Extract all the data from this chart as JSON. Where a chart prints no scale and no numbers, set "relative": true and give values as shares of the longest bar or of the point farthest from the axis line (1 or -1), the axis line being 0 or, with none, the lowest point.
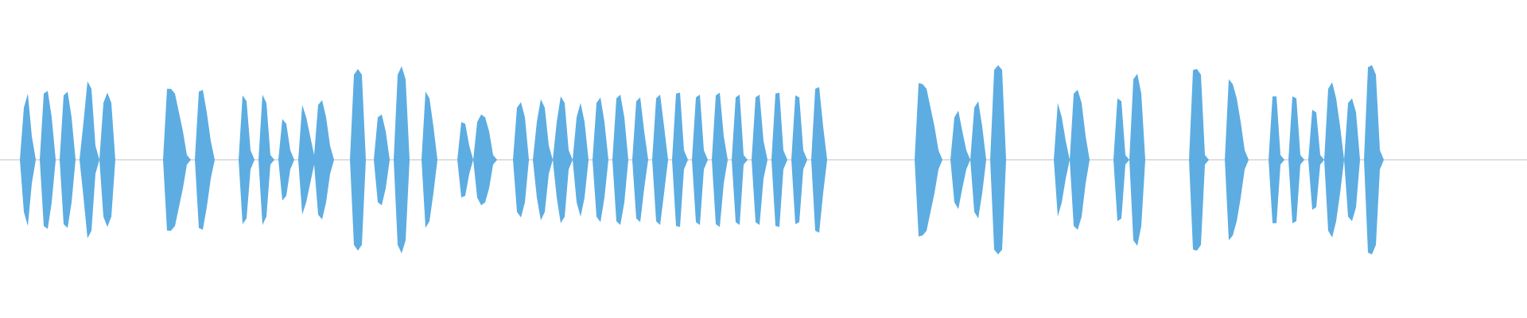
{
  "chart_data": {
    "type": "area",
    "relative": true,
    "categories": [
      null,
      null,
      null,
      null,
      null,
      null,
      null,
      null,
      null,
      null,
      null,
      null,
      null,
      null,
      null,
      null,
      null,
      null,
      null,
      null,
      null,
      null,
      null,
      null,
      null,
      null,
      null,
      null,
      null,
      null,
      null,
      null,
      null,
      null,
      null,
      null,
      null,
      null,
      null,
      null,
      null,
      null,
      null,
      null,
      null,
      null,
      null,
      null,
      null,
      null,
      null,
      null,
      null,
      null,
      null,
      null,
      null,
      null,
      null,
      null,
      null,
      null,
      null,
      null,
      null,
      null,
      null,
      null,
      null,
      null,
      null,
      null,
      null,
      null,
      null,
      null,
      null,
      null,
      null,
      null,
      null,
      null,
      null,
      null,
      null,
      null,
      null,
      null,
      null,
      null,
      null,
      null,
      null,
      null,
      null,
      null,
      null,
      null,
      null,
      null,
      null,
      null,
      null,
      null,
      null,
      null,
      null,
      null,
      null,
      null,
      null,
      null,
      null,
      null,
      null,
      null,
      null,
      null,
      null,
      null,
      null,
      null,
      null,
      null,
      null,
      null,
      null,
      null,
      null,
      null,
      null,
      null,
      null,
      null,
      null,
      null,
      null,
      null,
      null,
      null,
      null,
      null,
      null,
      null,
      null,
      null,
      null,
      null,
      null,
      null,
      null,
      null,
      null,
      null,
      null,
      null,
      null,
      null,
      null,
      null,
      null,
      null,
      null,
      null,
      null,
      null,
      null,
      null,
      null,
      null,
      null,
      null,
      null,
      null,
      null,
      null,
      null,
      null,
      null,
      null,
      null,
      null,
      null,
      null,
      null,
      null,
      null,
      null,
      null,
      null,
      null,
      null,
      null,
      null,
      null,
      null,
      null,
      null,
      null,
      null,
      null,
      null,
      null,
      null,
      null,
      null,
      null,
      null,
      null,
      null,
      null,
      null,
      null,
      null,
      null,
      null,
      null,
      null,
      null,
      null,
      null,
      null,
      null,
      null,
      null,
      null,
      null,
      null,
      null,
      null,
      null,
      null,
      null,
      null,
      null,
      null,
      null,
      null,
      null,
      null,
      null,
      null,
      null,
      null,
      null,
      null,
      null,
      null,
      null,
      null,
      null,
      null,
      null,
      null,
      null,
      null,
      null,
      null,
      null,
      null,
      null,
      null,
      null,
      null,
      null,
      null,
      null,
      null,
      null,
      null,
      null,
      null,
      null,
      null,
      null,
      null,
      null,
      null,
      null,
      null,
      null,
      null,
      null,
      null,
      null,
      null,
      null,
      null,
      null,
      null,
      null,
      null,
      null,
      null,
      null,
      null,
      null,
      null,
      null,
      null,
      null,
      null,
      null,
      null,
      null,
      null,
      null,
      null,
      null,
      null,
      null,
      null,
      null,
      null,
      null,
      null,
      null,
      null,
      null,
      null,
      null,
      null,
      null,
      null,
      null,
      null,
      null,
      null,
      null,
      null,
      null,
      null,
      null,
      null,
      null,
      null,
      null,
      null,
      null,
      null,
      null,
      null,
      null,
      null,
      null
    ],
    "series": [
      {
        "color": "#5dade2",
        "values": [
          0,
          0.55,
          0.7,
          0.25,
          0,
          0,
          0.7,
          0.73,
          0.45,
          0,
          0,
          0.68,
          0.72,
          0.45,
          0,
          0,
          0.4,
          0.83,
          0.75,
          0.15,
          0,
          0.6,
          0.71,
          0.6,
          0,
          0,
          0,
          0,
          0,
          0,
          0,
          0,
          0,
          0,
          0,
          0,
          0,
          0.75,
          0.75,
          0.7,
          0.5,
          0.3,
          0.05,
          0,
          0,
          0.72,
          0.74,
          0.5,
          0.2,
          0,
          0,
          0,
          0,
          0,
          0,
          0,
          0.68,
          0.62,
          0.1,
          0,
          0,
          0.69,
          0.6,
          0.05,
          0,
          0,
          0.43,
          0.38,
          0.1,
          0,
          0,
          0.58,
          0.45,
          0.25,
          0.05,
          0.58,
          0.63,
          0.45,
          0.15,
          0,
          0,
          0,
          0,
          0,
          0.9,
          0.96,
          0.9,
          0,
          0,
          0,
          0.45,
          0.48,
          0.3,
          0,
          0,
          0.9,
          0.99,
          0.85,
          0,
          0,
          0,
          0,
          0.72,
          0.65,
          0.35,
          0,
          0,
          0,
          0,
          0,
          0,
          0.4,
          0.38,
          0.15,
          0,
          0.4,
          0.48,
          0.45,
          0.3,
          0.05,
          0,
          0,
          0,
          0,
          0,
          0.55,
          0.61,
          0.45,
          0,
          0,
          0.4,
          0.64,
          0.55,
          0.15,
          0,
          0.4,
          0.67,
          0.6,
          0.1,
          0,
          0.45,
          0.6,
          0.4,
          0,
          0,
          0.6,
          0.66,
          0.4,
          0,
          0,
          0.65,
          0.69,
          0.45,
          0,
          0,
          0.62,
          0.66,
          0.3,
          0,
          0,
          0.65,
          0.69,
          0.35,
          0,
          0,
          0.7,
          0.71,
          0.1,
          0,
          0,
          0.66,
          0.69,
          0.1,
          0,
          0,
          0.68,
          0.71,
          0.25,
          0,
          0,
          0.66,
          0.69,
          0.05,
          0,
          0,
          0.66,
          0.69,
          0.2,
          0,
          0,
          0.7,
          0.71,
          0.1,
          0,
          0,
          0.68,
          0.66,
          0.1,
          0,
          0,
          0.75,
          0.77,
          0.35,
          0,
          0,
          0,
          0,
          0,
          0,
          0,
          0,
          0,
          0,
          0,
          0,
          0,
          0,
          0,
          0,
          0,
          0,
          0,
          0,
          0,
          0,
          0,
          0.81,
          0.8,
          0.75,
          0.55,
          0.35,
          0.1,
          0,
          0,
          0,
          0.45,
          0.52,
          0.3,
          0.1,
          0,
          0.55,
          0.62,
          0.35,
          0,
          0,
          0.95,
          1.0,
          0.95,
          0,
          0,
          0,
          0,
          0,
          0,
          0,
          0,
          0,
          0,
          0,
          0,
          0,
          0.6,
          0.45,
          0.2,
          0,
          0.7,
          0.74,
          0.6,
          0.25,
          0,
          0,
          0,
          0,
          0,
          0,
          0,
          0.65,
          0.62,
          0.05,
          0,
          0.85,
          0.91,
          0.7,
          0,
          0,
          0,
          0,
          0,
          0,
          0,
          0,
          0,
          0,
          0,
          0,
          0.95,
          0.96,
          0.9,
          0.05,
          0,
          0,
          0,
          0,
          0,
          0.85,
          0.8,
          0.65,
          0.4,
          0.1,
          0,
          0,
          0,
          0,
          0,
          0,
          0.67,
          0.67,
          0.05,
          0,
          0,
          0.67,
          0.65,
          0.05,
          0,
          0,
          0.53,
          0.5,
          0.05,
          0,
          0.75,
          0.82,
          0.65,
          0.35,
          0,
          0.6,
          0.65,
          0.5,
          0,
          0,
          0.98,
          1.0,
          0.9,
          0.1,
          0,
          0
        ]
      },
      {
        "color": "#5dade2",
        "values": [
          0,
          -0.55,
          -0.7,
          -0.25,
          0,
          0,
          -0.7,
          -0.73,
          -0.45,
          0,
          0,
          -0.68,
          -0.72,
          -0.45,
          0,
          0,
          -0.4,
          -0.83,
          -0.75,
          -0.15,
          0,
          -0.6,
          -0.71,
          -0.6,
          0,
          0,
          0,
          0,
          0,
          0,
          0,
          0,
          0,
          0,
          0,
          0,
          0,
          -0.75,
          -0.75,
          -0.7,
          -0.5,
          -0.3,
          -0.05,
          0,
          0,
          -0.72,
          -0.74,
          -0.5,
          -0.2,
          0,
          0,
          0,
          0,
          0,
          0,
          0,
          -0.68,
          -0.62,
          -0.1,
          0,
          0,
          -0.69,
          -0.6,
          -0.05,
          0,
          0,
          -0.43,
          -0.38,
          -0.1,
          0,
          0,
          -0.58,
          -0.45,
          -0.25,
          -0.05,
          -0.58,
          -0.63,
          -0.45,
          -0.15,
          0,
          0,
          0,
          0,
          0,
          -0.9,
          -0.96,
          -0.9,
          0,
          0,
          0,
          -0.45,
          -0.48,
          -0.3,
          0,
          0,
          -0.9,
          -0.99,
          -0.85,
          0,
          0,
          0,
          0,
          -0.72,
          -0.65,
          -0.35,
          0,
          0,
          0,
          0,
          0,
          0,
          -0.4,
          -0.38,
          -0.15,
          0,
          -0.4,
          -0.48,
          -0.45,
          -0.3,
          -0.05,
          0,
          0,
          0,
          0,
          0,
          -0.55,
          -0.61,
          -0.45,
          0,
          0,
          -0.4,
          -0.64,
          -0.55,
          -0.15,
          0,
          -0.4,
          -0.67,
          -0.6,
          -0.1,
          0,
          -0.45,
          -0.6,
          -0.4,
          0,
          0,
          -0.6,
          -0.66,
          -0.4,
          0,
          0,
          -0.65,
          -0.69,
          -0.45,
          0,
          0,
          -0.62,
          -0.66,
          -0.3,
          0,
          0,
          -0.65,
          -0.69,
          -0.35,
          0,
          0,
          -0.7,
          -0.71,
          -0.1,
          0,
          0,
          -0.66,
          -0.69,
          -0.1,
          0,
          0,
          -0.68,
          -0.71,
          -0.25,
          0,
          0,
          -0.66,
          -0.69,
          -0.05,
          0,
          0,
          -0.66,
          -0.69,
          -0.2,
          0,
          0,
          -0.7,
          -0.71,
          -0.1,
          0,
          0,
          -0.68,
          -0.66,
          -0.1,
          0,
          0,
          -0.75,
          -0.77,
          -0.35,
          0,
          0,
          0,
          0,
          0,
          0,
          0,
          0,
          0,
          0,
          0,
          0,
          0,
          0,
          0,
          0,
          0,
          0,
          0,
          0,
          0,
          0,
          0,
          -0.81,
          -0.8,
          -0.75,
          -0.55,
          -0.35,
          -0.1,
          0,
          0,
          0,
          -0.45,
          -0.52,
          -0.3,
          -0.1,
          0,
          -0.55,
          -0.62,
          -0.35,
          0,
          0,
          -0.95,
          -1.0,
          -0.95,
          0,
          0,
          0,
          0,
          0,
          0,
          0,
          0,
          0,
          0,
          0,
          0,
          0,
          -0.6,
          -0.45,
          -0.2,
          0,
          -0.7,
          -0.74,
          -0.6,
          -0.25,
          0,
          0,
          0,
          0,
          0,
          0,
          0,
          -0.65,
          -0.62,
          -0.05,
          0,
          -0.85,
          -0.91,
          -0.7,
          0,
          0,
          0,
          0,
          0,
          0,
          0,
          0,
          0,
          0,
          0,
          0,
          -0.95,
          -0.96,
          -0.9,
          -0.05,
          0,
          0,
          0,
          0,
          0,
          -0.85,
          -0.8,
          -0.65,
          -0.4,
          -0.1,
          0,
          0,
          0,
          0,
          0,
          0,
          -0.67,
          -0.67,
          -0.05,
          0,
          0,
          -0.67,
          -0.65,
          -0.05,
          0,
          0,
          -0.53,
          -0.5,
          -0.05,
          0,
          -0.75,
          -0.82,
          -0.65,
          -0.35,
          0,
          -0.6,
          -0.65,
          -0.5,
          0,
          0,
          -0.98,
          -1.0,
          -0.9,
          -0.1,
          0,
          0
        ]
      }
    ]
  }
}
